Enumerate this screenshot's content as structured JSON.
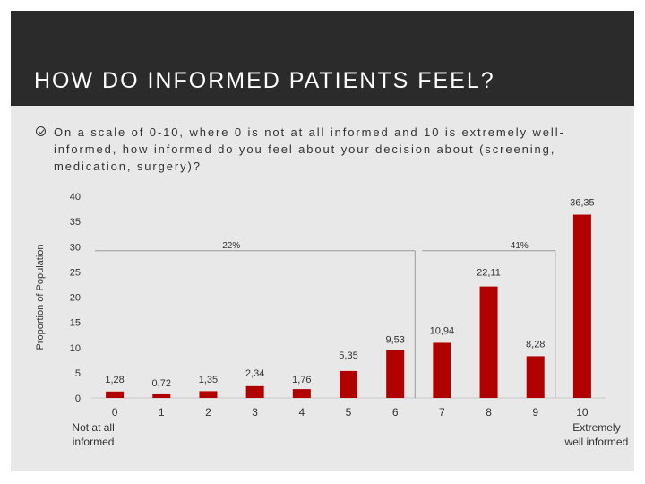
{
  "slide": {
    "title": "HOW DO INFORMED PATIENTS FEEL?",
    "question": "On a scale of 0-10, where 0 is not at all informed and 10 is extremely well-informed, how informed do you feel about your decision about (screening, medication, surgery)?",
    "bullet_icon": "check-circle-icon",
    "header_color": "#2b2b2b"
  },
  "chart_data": {
    "type": "bar",
    "ylabel": "Proportion of Population",
    "ylim": [
      0,
      40
    ],
    "yticks": [
      "0",
      "5",
      "10",
      "15",
      "20",
      "25",
      "30",
      "35",
      "40"
    ],
    "categories": [
      "0",
      "1",
      "2",
      "3",
      "4",
      "5",
      "6",
      "7",
      "8",
      "9",
      "10"
    ],
    "category_sublabels": [
      "Not at all informed",
      "",
      "",
      "",
      "",
      "",
      "",
      "",
      "",
      "",
      "Extremely well informed"
    ],
    "values": [
      1.28,
      0.72,
      1.35,
      2.34,
      1.76,
      5.35,
      9.53,
      10.94,
      22.11,
      8.28,
      36.35
    ],
    "value_labels": [
      "1,28",
      "0,72",
      "1,35",
      "2,34",
      "1,76",
      "5,35",
      "9,53",
      "10,94",
      "22,11",
      "8,28",
      "36,35"
    ],
    "bar_color": "#b00000",
    "brackets": [
      {
        "label": "22%",
        "from_category": "0",
        "to_category": "6",
        "level": 29.2
      },
      {
        "label": "41%",
        "from_category": "7",
        "to_category": "9",
        "level": 29.2
      }
    ]
  }
}
